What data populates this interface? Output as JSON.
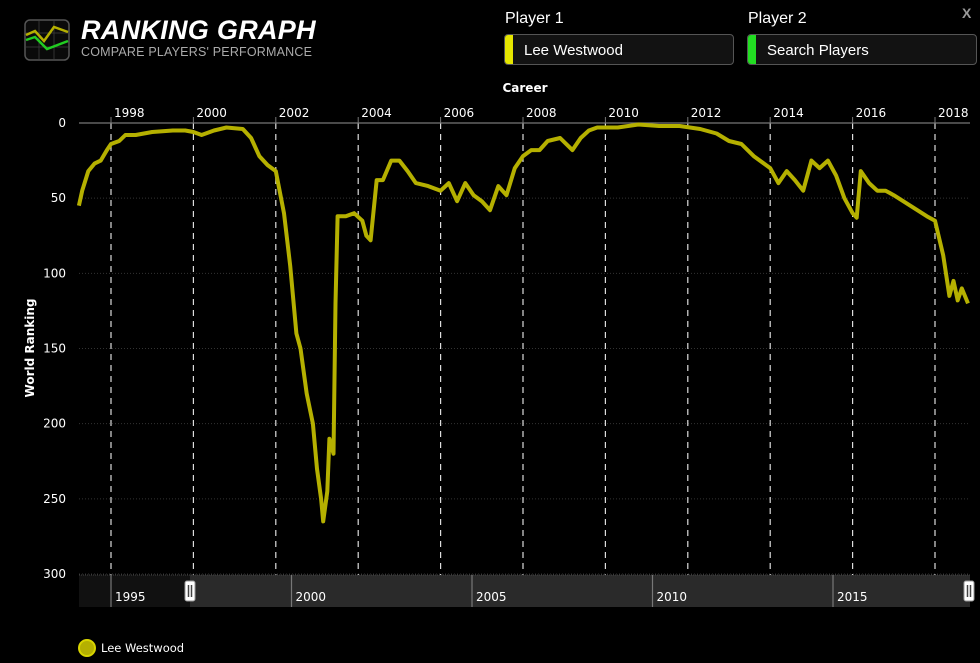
{
  "header": {
    "title": "RANKING GRAPH",
    "subtitle": "COMPARE PLAYERS' PERFORMANCE",
    "close_label": "X"
  },
  "players": [
    {
      "label": "Player 1",
      "value": "Lee Westwood",
      "color": "#e5e600"
    },
    {
      "label": "Player 2",
      "value": "Search Players",
      "color": "#22dd22"
    }
  ],
  "legend": [
    {
      "label": "Lee Westwood",
      "color": "#b5b000"
    }
  ],
  "navigator": {
    "tick_labels": [
      "1995",
      "2000",
      "2005",
      "2010",
      "2015"
    ],
    "range_start": 1994.1,
    "range_end": 2018.8,
    "selected_start": 1997.2,
    "selected_end": 2018.8
  },
  "chart_data": {
    "type": "line",
    "title": "Career",
    "xlabel": "",
    "ylabel": "World Ranking",
    "y_reversed": true,
    "ylim": [
      0,
      300
    ],
    "xlim": [
      1997.22,
      2018.85
    ],
    "yticks": [
      0,
      50,
      100,
      150,
      200,
      250,
      300
    ],
    "xticks": [
      "1998",
      "2000",
      "2002",
      "2004",
      "2006",
      "2008",
      "2010",
      "2012",
      "2014",
      "2016",
      "2018"
    ],
    "grid": {
      "x": "dashed",
      "y": "dotted"
    },
    "legend_position": "bottom-left",
    "series": [
      {
        "name": "Lee Westwood",
        "color": "#b5b000",
        "x": [
          1997.22,
          1997.3,
          1997.45,
          1997.6,
          1997.75,
          1997.9,
          1998.0,
          1998.2,
          1998.35,
          1998.6,
          1999.0,
          1999.5,
          1999.8,
          2000.0,
          2000.2,
          2000.5,
          2000.8,
          2001.2,
          2001.4,
          2001.6,
          2001.8,
          2002.0,
          2002.2,
          2002.35,
          2002.5,
          2002.6,
          2002.75,
          2002.9,
          2003.0,
          2003.1,
          2003.15,
          2003.25,
          2003.3,
          2003.4,
          2003.45,
          2003.5,
          2003.7,
          2003.9,
          2004.1,
          2004.2,
          2004.3,
          2004.45,
          2004.6,
          2004.8,
          2005.0,
          2005.2,
          2005.4,
          2005.7,
          2006.0,
          2006.2,
          2006.4,
          2006.6,
          2006.8,
          2007.0,
          2007.2,
          2007.4,
          2007.6,
          2007.8,
          2008.0,
          2008.2,
          2008.4,
          2008.6,
          2008.9,
          2009.2,
          2009.4,
          2009.6,
          2009.8,
          2010.3,
          2010.8,
          2011.3,
          2011.8,
          2012.3,
          2012.7,
          2013.0,
          2013.3,
          2013.6,
          2014.0,
          2014.2,
          2014.4,
          2014.6,
          2014.8,
          2015.0,
          2015.2,
          2015.4,
          2015.6,
          2015.8,
          2016.0,
          2016.1,
          2016.2,
          2016.4,
          2016.6,
          2016.8,
          2017.0,
          2017.4,
          2017.8,
          2018.0,
          2018.2,
          2018.35,
          2018.45,
          2018.55,
          2018.65,
          2018.8
        ],
        "values": [
          55,
          45,
          32,
          27,
          25,
          18,
          14,
          12,
          8,
          8,
          6,
          5,
          5,
          6,
          8,
          5,
          3,
          4,
          10,
          22,
          28,
          32,
          60,
          95,
          140,
          150,
          180,
          200,
          230,
          250,
          265,
          245,
          210,
          220,
          120,
          62,
          62,
          60,
          65,
          75,
          78,
          38,
          38,
          25,
          25,
          32,
          40,
          42,
          45,
          40,
          52,
          40,
          48,
          52,
          58,
          42,
          48,
          30,
          22,
          18,
          18,
          12,
          10,
          18,
          10,
          5,
          3,
          3,
          1,
          2,
          2,
          4,
          7,
          12,
          14,
          22,
          30,
          40,
          32,
          38,
          45,
          25,
          30,
          25,
          35,
          50,
          60,
          63,
          32,
          40,
          45,
          45,
          48,
          55,
          62,
          65,
          88,
          115,
          105,
          118,
          110,
          120
        ]
      }
    ]
  }
}
